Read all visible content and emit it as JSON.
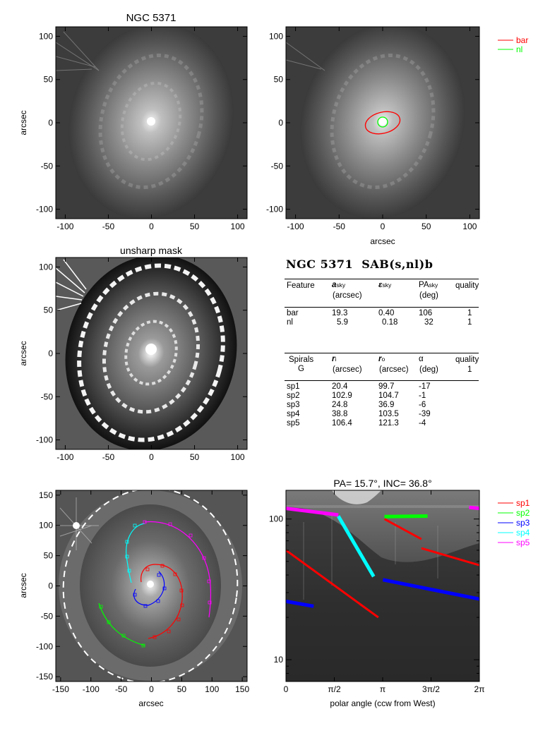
{
  "panels": {
    "tl": {
      "title": "NGC 5371",
      "ylabel": "arcsec",
      "xticks": [
        "-100",
        "-50",
        "0",
        "50",
        "100"
      ],
      "yticks": [
        "100",
        "50",
        "0",
        "-50",
        "-100"
      ]
    },
    "tr": {
      "xlabel": "arcsec",
      "xticks": [
        "-100",
        "-50",
        "0",
        "50",
        "100"
      ],
      "yticks": [
        "100",
        "50",
        "0",
        "-50",
        "-100"
      ],
      "legend": [
        {
          "label": "bar",
          "color": "#ff0000"
        },
        {
          "label": "nl",
          "color": "#00ff00"
        }
      ]
    },
    "ml": {
      "title": "unsharp mask",
      "ylabel": "arcsec",
      "xticks": [
        "-100",
        "-50",
        "0",
        "50",
        "100"
      ],
      "yticks": [
        "100",
        "50",
        "0",
        "-50",
        "-100"
      ]
    },
    "bl": {
      "xlabel": "arcsec",
      "ylabel": "arcsec",
      "xticks": [
        "-150",
        "-100",
        "-50",
        "0",
        "50",
        "100",
        "150"
      ],
      "yticks": [
        "150",
        "100",
        "50",
        "0",
        "-50",
        "-100",
        "-150"
      ]
    },
    "br": {
      "title": "PA=  15.7°, INC=  36.8°",
      "xlabel": "polar angle (ccw from West)",
      "xticks": [
        "0",
        "π/2",
        "π",
        "3π/2",
        "2π"
      ],
      "yticks": [
        "100",
        "10"
      ],
      "legend": [
        {
          "label": "sp1",
          "color": "#ff0000"
        },
        {
          "label": "sp2",
          "color": "#00ff00"
        },
        {
          "label": "sp3",
          "color": "#0000ff"
        },
        {
          "label": "sp4",
          "color": "#00ffff"
        },
        {
          "label": "sp5",
          "color": "#ff00ff"
        }
      ]
    }
  },
  "table": {
    "heading": "NGC 5371  SAB(s,nl)b",
    "features": {
      "h1": "Feature",
      "h2": "a",
      "h2sub": "sky",
      "h2unit": "(arcsec)",
      "h3": "ε",
      "h3sub": "sky",
      "h4": "PA",
      "h4sub": "sky",
      "h4unit": "(deg)",
      "h5": "quality",
      "rows": [
        {
          "name": "bar",
          "a": "19.3",
          "e": "0.40",
          "pa": "106",
          "q": "1"
        },
        {
          "name": "nl",
          "a": "5.9",
          "e": "0.18",
          "pa": "32",
          "q": "1"
        }
      ]
    },
    "spirals": {
      "h1": "Spirals",
      "h1b": "G",
      "h2": "r",
      "h2sub": "i",
      "h2unit": "(arcsec)",
      "h3": "r",
      "h3sub": "o",
      "h3unit": "(arcsec)",
      "h4": "α",
      "h4unit": "(deg)",
      "h5": "quality",
      "h5b": "1",
      "rows": [
        {
          "name": "sp1",
          "ri": "20.4",
          "ro": "99.7",
          "al": "-17"
        },
        {
          "name": "sp2",
          "ri": "102.9",
          "ro": "104.7",
          "al": "-1"
        },
        {
          "name": "sp3",
          "ri": "24.8",
          "ro": "36.9",
          "al": "-6"
        },
        {
          "name": "sp4",
          "ri": "38.8",
          "ro": "103.5",
          "al": "-39"
        },
        {
          "name": "sp5",
          "ri": "106.4",
          "ro": "121.3",
          "al": "-4"
        }
      ]
    }
  },
  "chart_data": {
    "type": "line",
    "title": "PA=  15.7°, INC=  36.8°",
    "xlabel": "polar angle (ccw from West)",
    "ylabel": "",
    "xlim": [
      0,
      6.2832
    ],
    "ylim": [
      7,
      160
    ],
    "yscale": "log",
    "series": [
      {
        "name": "sp1",
        "color": "#ff0000",
        "segments": [
          [
            [
              0,
              60
            ],
            [
              3.0,
              20
            ]
          ],
          [
            [
              3.2,
              100
            ],
            [
              4.4,
              72
            ]
          ],
          [
            [
              4.4,
              62
            ],
            [
              6.28,
              47
            ]
          ]
        ]
      },
      {
        "name": "sp2",
        "color": "#00ff00",
        "segments": [
          [
            [
              3.2,
              104
            ],
            [
              4.6,
              105
            ]
          ]
        ]
      },
      {
        "name": "sp3",
        "color": "#0000ff",
        "segments": [
          [
            [
              0,
              26
            ],
            [
              0.9,
              24
            ]
          ],
          [
            [
              3.15,
              37
            ],
            [
              6.28,
              27
            ]
          ]
        ]
      },
      {
        "name": "sp4",
        "color": "#00ffff",
        "segments": [
          [
            [
              1.7,
              105
            ],
            [
              2.85,
              39
            ]
          ]
        ]
      },
      {
        "name": "sp5",
        "color": "#ff00ff",
        "segments": [
          [
            [
              0,
              119
            ],
            [
              1.7,
              107
            ]
          ],
          [
            [
              5.95,
              121
            ],
            [
              6.28,
              119
            ]
          ]
        ]
      }
    ]
  }
}
